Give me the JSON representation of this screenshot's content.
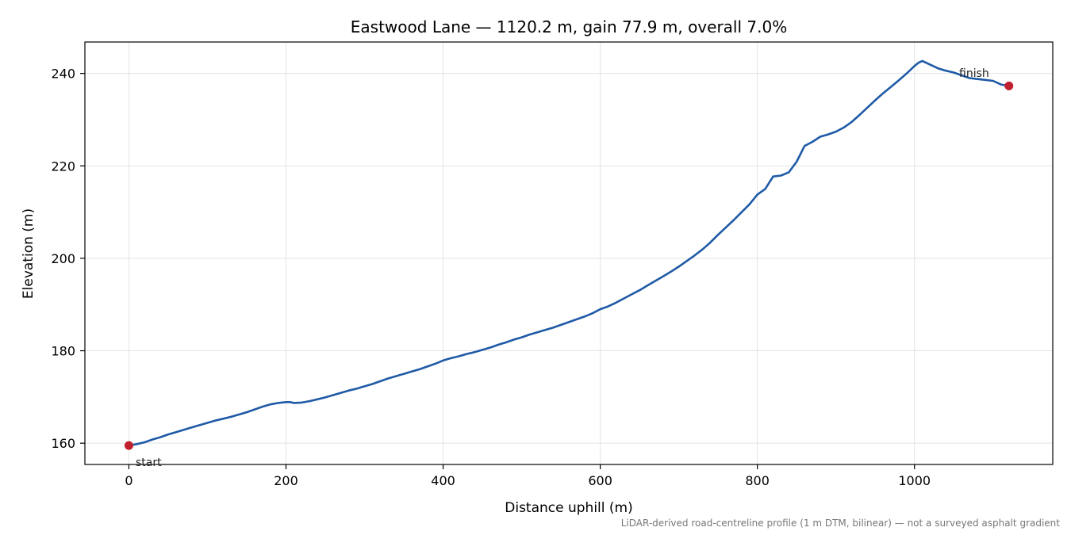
{
  "chart_data": {
    "type": "line",
    "title": "Eastwood Lane — 1120.2 m, gain 77.9 m, overall 7.0%",
    "xlabel": "Distance uphill (m)",
    "ylabel": "Elevation (m)",
    "xlim": [
      -56,
      1176
    ],
    "ylim": [
      155.4,
      246.8
    ],
    "xticks": [
      0,
      200,
      400,
      600,
      800,
      1000
    ],
    "yticks": [
      160,
      180,
      200,
      220,
      240
    ],
    "grid": true,
    "line_color": "#1f5aa6",
    "marker_color": "#c0202e",
    "series": [
      {
        "x": [
          0,
          10,
          20,
          30,
          40,
          50,
          60,
          70,
          80,
          90,
          100,
          110,
          120,
          130,
          140,
          150,
          160,
          170,
          180,
          190,
          200,
          205,
          210,
          220,
          230,
          240,
          250,
          260,
          270,
          280,
          290,
          300,
          310,
          320,
          330,
          340,
          350,
          360,
          370,
          380,
          390,
          400,
          410,
          420,
          430,
          440,
          450,
          460,
          470,
          480,
          490,
          500,
          510,
          520,
          530,
          540,
          550,
          560,
          570,
          580,
          590,
          600,
          610,
          620,
          630,
          640,
          650,
          660,
          670,
          680,
          690,
          700,
          710,
          720,
          730,
          740,
          750,
          760,
          770,
          780,
          790,
          800,
          810,
          820,
          830,
          840,
          850,
          860,
          870,
          880,
          890,
          900,
          910,
          920,
          930,
          940,
          950,
          960,
          970,
          980,
          990,
          1000,
          1005,
          1010,
          1020,
          1030,
          1040,
          1050,
          1060,
          1070,
          1080,
          1090,
          1100,
          1110,
          1120.2
        ],
        "y": [
          159.5,
          159.8,
          160.2,
          160.8,
          161.3,
          161.9,
          162.4,
          162.9,
          163.4,
          163.9,
          164.4,
          164.9,
          165.3,
          165.7,
          166.2,
          166.7,
          167.3,
          167.9,
          168.4,
          168.7,
          168.9,
          168.9,
          168.7,
          168.8,
          169.1,
          169.5,
          169.9,
          170.4,
          170.9,
          171.4,
          171.8,
          172.3,
          172.8,
          173.4,
          174.0,
          174.5,
          175.0,
          175.5,
          176.0,
          176.6,
          177.2,
          177.9,
          178.4,
          178.8,
          179.3,
          179.7,
          180.2,
          180.7,
          181.3,
          181.8,
          182.4,
          182.9,
          183.5,
          184.0,
          184.5,
          185.0,
          185.6,
          186.2,
          186.8,
          187.4,
          188.1,
          189.0,
          189.6,
          190.4,
          191.3,
          192.2,
          193.1,
          194.1,
          195.1,
          196.1,
          197.1,
          198.2,
          199.4,
          200.6,
          201.9,
          203.4,
          205.1,
          206.7,
          208.3,
          210.0,
          211.7,
          213.8,
          215.0,
          217.7,
          217.9,
          218.6,
          220.9,
          224.3,
          225.2,
          226.3,
          226.8,
          227.4,
          228.3,
          229.5,
          231.0,
          232.6,
          234.2,
          235.7,
          237.1,
          238.5,
          240.0,
          241.6,
          242.3,
          242.7,
          241.9,
          241.1,
          240.6,
          240.2,
          239.6,
          239.0,
          238.8,
          238.6,
          238.4,
          237.6,
          237.3
        ]
      }
    ],
    "annotations": [
      {
        "text": "start",
        "x": 0,
        "y": 159.5
      },
      {
        "text": "finish",
        "x": 1120.2,
        "y": 237.3
      }
    ],
    "footnote": "LiDAR-derived road-centreline profile (1 m DTM, bilinear) — not a surveyed asphalt gradient"
  }
}
